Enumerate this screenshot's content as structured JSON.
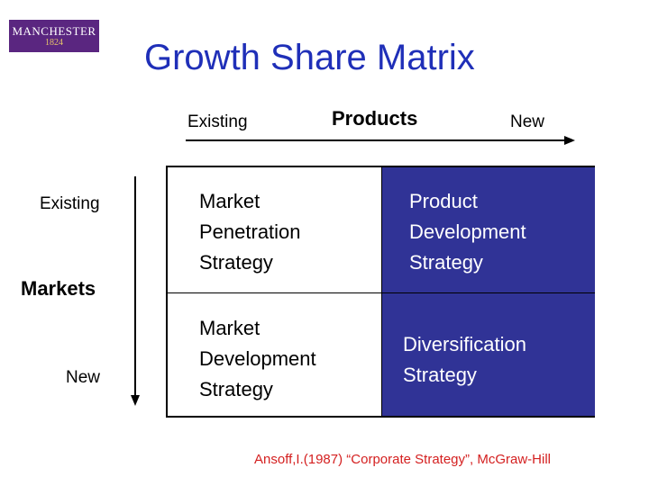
{
  "logo": {
    "name": "MANCHESTER",
    "year": "1824"
  },
  "title": "Growth Share Matrix",
  "products_axis": {
    "title": "Products",
    "start": "Existing",
    "end": "New"
  },
  "markets_axis": {
    "title": "Markets",
    "start": "Existing",
    "end": "New"
  },
  "matrix": {
    "top_left": [
      "Market",
      "Penetration",
      "Strategy"
    ],
    "top_right": [
      "Product",
      "Development",
      "Strategy"
    ],
    "bottom_left": [
      "Market",
      "Development",
      "Strategy"
    ],
    "bottom_right": [
      "Diversification",
      "Strategy"
    ]
  },
  "citation": "Ansoff,I.(1987) “Corporate Strategy”, McGraw-Hill",
  "colors": {
    "title": "#1f2fb8",
    "cell_fill": "#303396",
    "citation": "#d42020",
    "logo_bg": "#5a2680"
  }
}
